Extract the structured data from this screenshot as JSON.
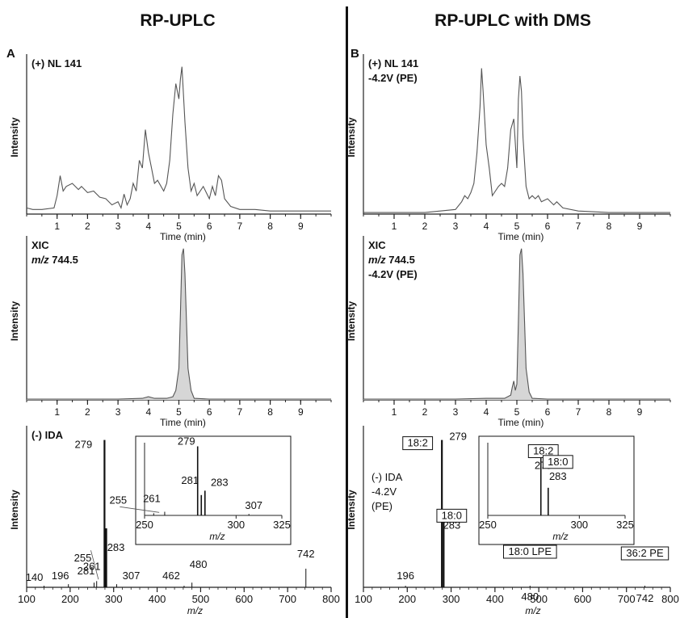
{
  "headers": {
    "left": "RP-UPLC",
    "right": "RP-UPLC with DMS"
  },
  "panel_letters": {
    "left": "A",
    "right": "B"
  },
  "colors": {
    "trace": "#555555",
    "fill": "#d6d6d6",
    "axis": "#222222",
    "bar": "#111111"
  },
  "chart_data": [
    {
      "id": "A-top",
      "type": "line",
      "ylabel": "Intensity",
      "xlabel": "Time (min)",
      "annotation": [
        "(+) NL 141"
      ],
      "xlim": [
        0,
        10
      ],
      "xticks": [
        1,
        2,
        3,
        4,
        5,
        6,
        7,
        8,
        9
      ],
      "ylim": [
        0,
        1
      ],
      "x": [
        0.0,
        0.2,
        0.5,
        0.9,
        1.0,
        1.1,
        1.2,
        1.3,
        1.5,
        1.7,
        1.8,
        2.0,
        2.2,
        2.4,
        2.6,
        2.8,
        3.0,
        3.1,
        3.2,
        3.3,
        3.4,
        3.5,
        3.6,
        3.7,
        3.8,
        3.9,
        4.0,
        4.1,
        4.2,
        4.3,
        4.5,
        4.6,
        4.7,
        4.8,
        4.9,
        5.0,
        5.05,
        5.1,
        5.2,
        5.3,
        5.4,
        5.5,
        5.6,
        5.8,
        6.0,
        6.1,
        6.2,
        6.3,
        6.4,
        6.5,
        6.7,
        7.0,
        7.5,
        8.0,
        8.5,
        9.0,
        9.5,
        10.0
      ],
      "y": [
        0.04,
        0.03,
        0.03,
        0.04,
        0.12,
        0.25,
        0.15,
        0.18,
        0.2,
        0.16,
        0.18,
        0.14,
        0.15,
        0.11,
        0.1,
        0.06,
        0.08,
        0.04,
        0.13,
        0.06,
        0.1,
        0.2,
        0.15,
        0.35,
        0.3,
        0.55,
        0.4,
        0.3,
        0.2,
        0.22,
        0.15,
        0.2,
        0.35,
        0.65,
        0.85,
        0.75,
        0.88,
        0.96,
        0.6,
        0.3,
        0.15,
        0.2,
        0.12,
        0.18,
        0.1,
        0.18,
        0.12,
        0.25,
        0.22,
        0.1,
        0.05,
        0.03,
        0.03,
        0.02,
        0.02,
        0.02,
        0.02,
        0.02
      ]
    },
    {
      "id": "A-mid",
      "type": "area",
      "ylabel": "Intensity",
      "xlabel": "Time (min)",
      "annotation": [
        "XIC",
        "m/z 744.5"
      ],
      "xlim": [
        0,
        10
      ],
      "xticks": [
        1,
        2,
        3,
        4,
        5,
        6,
        7,
        8,
        9
      ],
      "ylim": [
        0,
        1
      ],
      "x": [
        0.0,
        1.0,
        2.0,
        3.0,
        3.8,
        4.0,
        4.2,
        4.6,
        4.8,
        4.9,
        5.0,
        5.05,
        5.1,
        5.15,
        5.2,
        5.25,
        5.3,
        5.4,
        5.5,
        6.0,
        7.0,
        8.0,
        9.0,
        10.0
      ],
      "y": [
        0.005,
        0.005,
        0.005,
        0.005,
        0.01,
        0.02,
        0.01,
        0.01,
        0.02,
        0.06,
        0.2,
        0.55,
        0.92,
        0.96,
        0.8,
        0.5,
        0.2,
        0.06,
        0.01,
        0.005,
        0.005,
        0.005,
        0.005,
        0.005
      ]
    },
    {
      "id": "A-bot",
      "type": "bar",
      "ylabel": "Intensity",
      "xlabel": "m/z",
      "annotation": [
        "(-) IDA"
      ],
      "xlim": [
        100,
        800
      ],
      "xticks": [
        100,
        200,
        300,
        400,
        500,
        600,
        700,
        800
      ],
      "ylim": [
        0,
        1
      ],
      "peaks": [
        {
          "mz": 140,
          "i": 0.01,
          "label": "140"
        },
        {
          "mz": 196,
          "i": 0.02,
          "label": "196"
        },
        {
          "mz": 255,
          "i": 0.03,
          "label": "255"
        },
        {
          "mz": 261,
          "i": 0.04,
          "label": "261"
        },
        {
          "mz": 279,
          "i": 0.95,
          "label": "279"
        },
        {
          "mz": 281,
          "i": 0.22,
          "label": "281"
        },
        {
          "mz": 283,
          "i": 0.38,
          "label": "283"
        },
        {
          "mz": 307,
          "i": 0.02,
          "label": "307"
        },
        {
          "mz": 462,
          "i": 0.01,
          "label": "462"
        },
        {
          "mz": 480,
          "i": 0.03,
          "label": "480"
        },
        {
          "mz": 742,
          "i": 0.12,
          "label": "742"
        }
      ],
      "inset": {
        "xlabel": "m/z",
        "xlim": [
          250,
          325
        ],
        "xticks": [
          250,
          300,
          325
        ],
        "peaks": [
          {
            "mz": 255,
            "i": 0.03,
            "label": "255"
          },
          {
            "mz": 261,
            "i": 0.05,
            "label": "261"
          },
          {
            "mz": 279,
            "i": 0.95,
            "label": "279"
          },
          {
            "mz": 281,
            "i": 0.28,
            "label": "281"
          },
          {
            "mz": 283,
            "i": 0.34,
            "label": "283"
          },
          {
            "mz": 307,
            "i": 0.02,
            "label": "307"
          }
        ]
      }
    },
    {
      "id": "B-top",
      "type": "line",
      "ylabel": "Intensity",
      "xlabel": "Time (min)",
      "annotation": [
        "(+) NL 141",
        "-4.2V (PE)"
      ],
      "xlim": [
        0,
        10
      ],
      "xticks": [
        1,
        2,
        3,
        4,
        5,
        6,
        7,
        8,
        9
      ],
      "ylim": [
        0,
        1
      ],
      "x": [
        0.0,
        1.0,
        2.0,
        2.5,
        3.0,
        3.2,
        3.3,
        3.4,
        3.5,
        3.6,
        3.7,
        3.8,
        3.85,
        3.9,
        4.0,
        4.1,
        4.2,
        4.3,
        4.4,
        4.5,
        4.6,
        4.7,
        4.8,
        4.9,
        5.0,
        5.05,
        5.1,
        5.15,
        5.2,
        5.3,
        5.4,
        5.5,
        5.6,
        5.7,
        5.8,
        6.0,
        6.2,
        6.3,
        6.5,
        7.0,
        8.0,
        9.0,
        10.0
      ],
      "y": [
        0.01,
        0.01,
        0.01,
        0.02,
        0.03,
        0.08,
        0.12,
        0.1,
        0.14,
        0.2,
        0.4,
        0.7,
        0.95,
        0.8,
        0.45,
        0.3,
        0.12,
        0.15,
        0.18,
        0.2,
        0.18,
        0.3,
        0.55,
        0.62,
        0.3,
        0.75,
        0.9,
        0.8,
        0.5,
        0.18,
        0.1,
        0.12,
        0.1,
        0.12,
        0.08,
        0.1,
        0.06,
        0.08,
        0.04,
        0.02,
        0.01,
        0.01,
        0.01
      ]
    },
    {
      "id": "B-mid",
      "type": "area",
      "ylabel": "Intensity",
      "xlabel": "Time (min)",
      "annotation": [
        "XIC",
        "m/z 744.5",
        "-4.2V (PE)"
      ],
      "xlim": [
        0,
        10
      ],
      "xticks": [
        1,
        2,
        3,
        4,
        5,
        6,
        7,
        8,
        9
      ],
      "ylim": [
        0,
        1
      ],
      "x": [
        0.0,
        1.0,
        2.0,
        3.0,
        4.0,
        4.6,
        4.8,
        4.85,
        4.9,
        4.95,
        5.0,
        5.05,
        5.1,
        5.15,
        5.2,
        5.25,
        5.3,
        5.4,
        5.5,
        6.0,
        7.0,
        8.0,
        9.0,
        10.0
      ],
      "y": [
        0.005,
        0.005,
        0.005,
        0.005,
        0.01,
        0.01,
        0.03,
        0.08,
        0.12,
        0.06,
        0.1,
        0.5,
        0.92,
        0.96,
        0.8,
        0.5,
        0.2,
        0.05,
        0.01,
        0.005,
        0.005,
        0.005,
        0.005,
        0.005
      ]
    },
    {
      "id": "B-bot",
      "type": "bar",
      "ylabel": "Intensity",
      "xlabel": "m/z",
      "annotation": [
        "(-) IDA",
        "-4.2V",
        "(PE)"
      ],
      "xlim": [
        100,
        800
      ],
      "xticks": [
        100,
        200,
        300,
        400,
        500,
        600,
        700,
        800
      ],
      "ylim": [
        0,
        1
      ],
      "peaks": [
        {
          "mz": 196,
          "i": 0.01,
          "label": "196"
        },
        {
          "mz": 279,
          "i": 0.95,
          "label": "279",
          "tag": "18:2"
        },
        {
          "mz": 283,
          "i": 0.42,
          "label": "283",
          "tag": "18:0"
        },
        {
          "mz": 480,
          "i": 0.01,
          "label": "480",
          "tag": "18:0 LPE"
        },
        {
          "mz": 742,
          "i": 0.01,
          "label": "742",
          "tag": "36:2 PE"
        }
      ],
      "inset": {
        "xlabel": "m/z",
        "xlim": [
          250,
          325
        ],
        "xticks": [
          250,
          300,
          325
        ],
        "peaks": [
          {
            "mz": 279,
            "i": 0.95,
            "label": "279",
            "tag": "18:2"
          },
          {
            "mz": 283,
            "i": 0.38,
            "label": "283",
            "tag": "18:0"
          }
        ]
      }
    }
  ]
}
